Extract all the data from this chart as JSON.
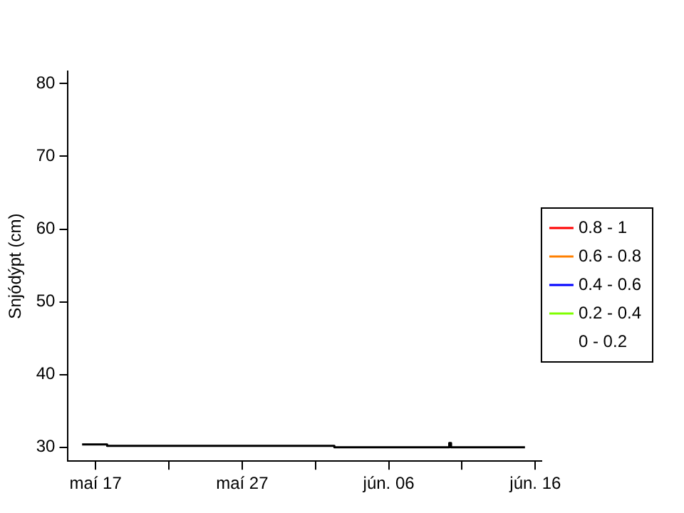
{
  "chart_data": {
    "type": "step",
    "ylabel": "Snjódýpt (cm)",
    "xlim": [
      "--05-15T03:00",
      "--06-16T10:00"
    ],
    "xticks": [
      {
        "value": "--05-17",
        "label": "maí 17"
      },
      {
        "value": "--05-22",
        "label": null
      },
      {
        "value": "--05-27",
        "label": "maí 27"
      },
      {
        "value": "--06-01",
        "label": null
      },
      {
        "value": "--06-06",
        "label": "jún. 06"
      },
      {
        "value": "--06-11",
        "label": null
      },
      {
        "value": "--06-16",
        "label": "jún. 16"
      }
    ],
    "ylim": [
      28.1,
      81.7
    ],
    "yticks": [
      30,
      40,
      50,
      60,
      70,
      80
    ],
    "legend": "right",
    "grid": false,
    "marker": "none",
    "line_style": "solid",
    "series": [
      {
        "color": "#000000",
        "x": [
          "--05-16T02:00",
          "--05-17T19:00",
          "--06-02T07:00",
          "--06-10T03:00",
          "--06-10T06:00",
          "--06-15T07:00"
        ],
        "values": [
          30.4,
          30.2,
          30.0,
          30.6,
          30.0,
          30.0
        ]
      },
      {
        "name": "0.8 - 1",
        "color": "#ff0000"
      },
      {
        "name": "0.6 - 0.8",
        "color": "#ff8000"
      },
      {
        "name": "0.4 - 0.6",
        "color": "#0000ff"
      },
      {
        "name": "0.2 - 0.4",
        "color": "#80ff00"
      },
      {
        "name": "0 - 0.2"
      }
    ]
  }
}
